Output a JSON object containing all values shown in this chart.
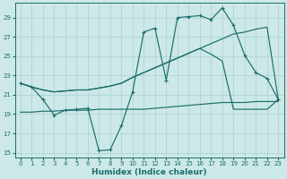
{
  "xlabel": "Humidex (Indice chaleur)",
  "bg_color": "#cde8e8",
  "grid_color": "#a8d0d0",
  "line_color": "#1a6e6a",
  "xlim": [
    -0.5,
    23.5
  ],
  "ylim": [
    14.5,
    30.5
  ],
  "yticks": [
    15,
    17,
    19,
    21,
    23,
    25,
    27,
    29
  ],
  "xticks": [
    0,
    1,
    2,
    3,
    4,
    5,
    6,
    7,
    8,
    9,
    10,
    11,
    12,
    13,
    14,
    15,
    16,
    17,
    18,
    19,
    20,
    21,
    22,
    23
  ],
  "s1x": [
    0,
    1,
    2,
    3,
    4,
    5,
    6,
    7,
    8,
    9,
    10,
    11,
    12,
    13,
    14,
    15,
    16,
    17,
    18,
    19,
    20,
    21,
    22,
    23
  ],
  "s1y": [
    22.2,
    21.8,
    20.5,
    18.9,
    19.4,
    19.5,
    19.6,
    15.2,
    15.3,
    17.8,
    21.3,
    27.5,
    27.9,
    22.5,
    29.0,
    29.1,
    29.2,
    28.8,
    30.0,
    28.2,
    25.1,
    23.3,
    22.7,
    20.5
  ],
  "s2x": [
    0,
    1,
    2,
    3,
    4,
    5,
    6,
    7,
    8,
    9,
    10,
    11,
    12,
    13,
    14,
    15,
    16,
    17,
    18,
    19,
    20,
    21,
    22,
    23
  ],
  "s2y": [
    22.2,
    21.8,
    21.5,
    21.3,
    21.4,
    21.5,
    21.5,
    21.7,
    21.9,
    22.2,
    22.8,
    23.3,
    23.8,
    24.3,
    24.8,
    25.3,
    25.8,
    26.3,
    26.8,
    27.3,
    27.5,
    27.8,
    28.0,
    20.5
  ],
  "s3x": [
    0,
    1,
    2,
    3,
    4,
    5,
    6,
    7,
    8,
    9,
    10,
    11,
    12,
    13,
    14,
    15,
    16,
    17,
    18,
    19,
    20,
    21,
    22,
    23
  ],
  "s3y": [
    22.2,
    21.8,
    21.5,
    21.3,
    21.4,
    21.5,
    21.5,
    21.7,
    21.9,
    22.2,
    22.8,
    23.3,
    23.8,
    24.3,
    24.8,
    25.3,
    25.8,
    25.2,
    24.5,
    19.5,
    19.5,
    19.5,
    19.5,
    20.5
  ],
  "s4x": [
    0,
    1,
    2,
    3,
    4,
    5,
    6,
    7,
    8,
    9,
    10,
    11,
    12,
    13,
    14,
    15,
    16,
    17,
    18,
    19,
    20,
    21,
    22,
    23
  ],
  "s4y": [
    19.2,
    19.2,
    19.3,
    19.3,
    19.4,
    19.4,
    19.4,
    19.5,
    19.5,
    19.5,
    19.5,
    19.5,
    19.6,
    19.7,
    19.8,
    19.9,
    20.0,
    20.1,
    20.2,
    20.2,
    20.2,
    20.3,
    20.3,
    20.3
  ]
}
